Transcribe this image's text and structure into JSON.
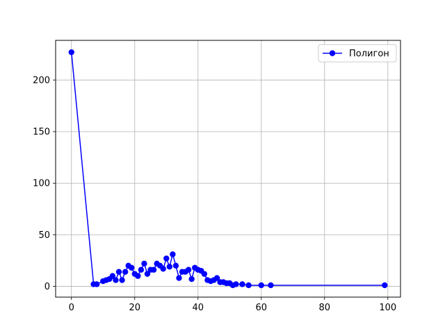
{
  "chart_data": {
    "type": "line",
    "title": "",
    "xlabel": "",
    "ylabel": "",
    "xlim": [
      -5,
      104
    ],
    "ylim": [
      -10.5,
      238.5
    ],
    "xticks": [
      0,
      20,
      40,
      60,
      80,
      100
    ],
    "yticks": [
      0,
      50,
      100,
      150,
      200
    ],
    "grid": true,
    "legend": {
      "position": "top-right",
      "entries": [
        "Полигон"
      ]
    },
    "series": [
      {
        "name": "Полигон",
        "color": "#0000ff",
        "marker": "circle",
        "x": [
          0,
          7,
          8,
          10,
          11,
          12,
          13,
          14,
          15,
          16,
          17,
          18,
          19,
          20,
          21,
          22,
          23,
          24,
          25,
          26,
          27,
          28,
          29,
          30,
          31,
          32,
          33,
          34,
          35,
          36,
          37,
          38,
          39,
          40,
          41,
          42,
          43,
          44,
          45,
          46,
          47,
          48,
          49,
          50,
          51,
          52,
          54,
          56,
          60,
          63,
          99
        ],
        "y": [
          227,
          2,
          2,
          5,
          6,
          7,
          10,
          6,
          14,
          6,
          14,
          20,
          18,
          12,
          10,
          16,
          22,
          12,
          16,
          16,
          22,
          20,
          17,
          27,
          19,
          31,
          20,
          8,
          14,
          14,
          16,
          7,
          18,
          16,
          15,
          12,
          6,
          5,
          6,
          8,
          4,
          4,
          3,
          3,
          1,
          2,
          2,
          1,
          1,
          1,
          1
        ]
      }
    ]
  }
}
